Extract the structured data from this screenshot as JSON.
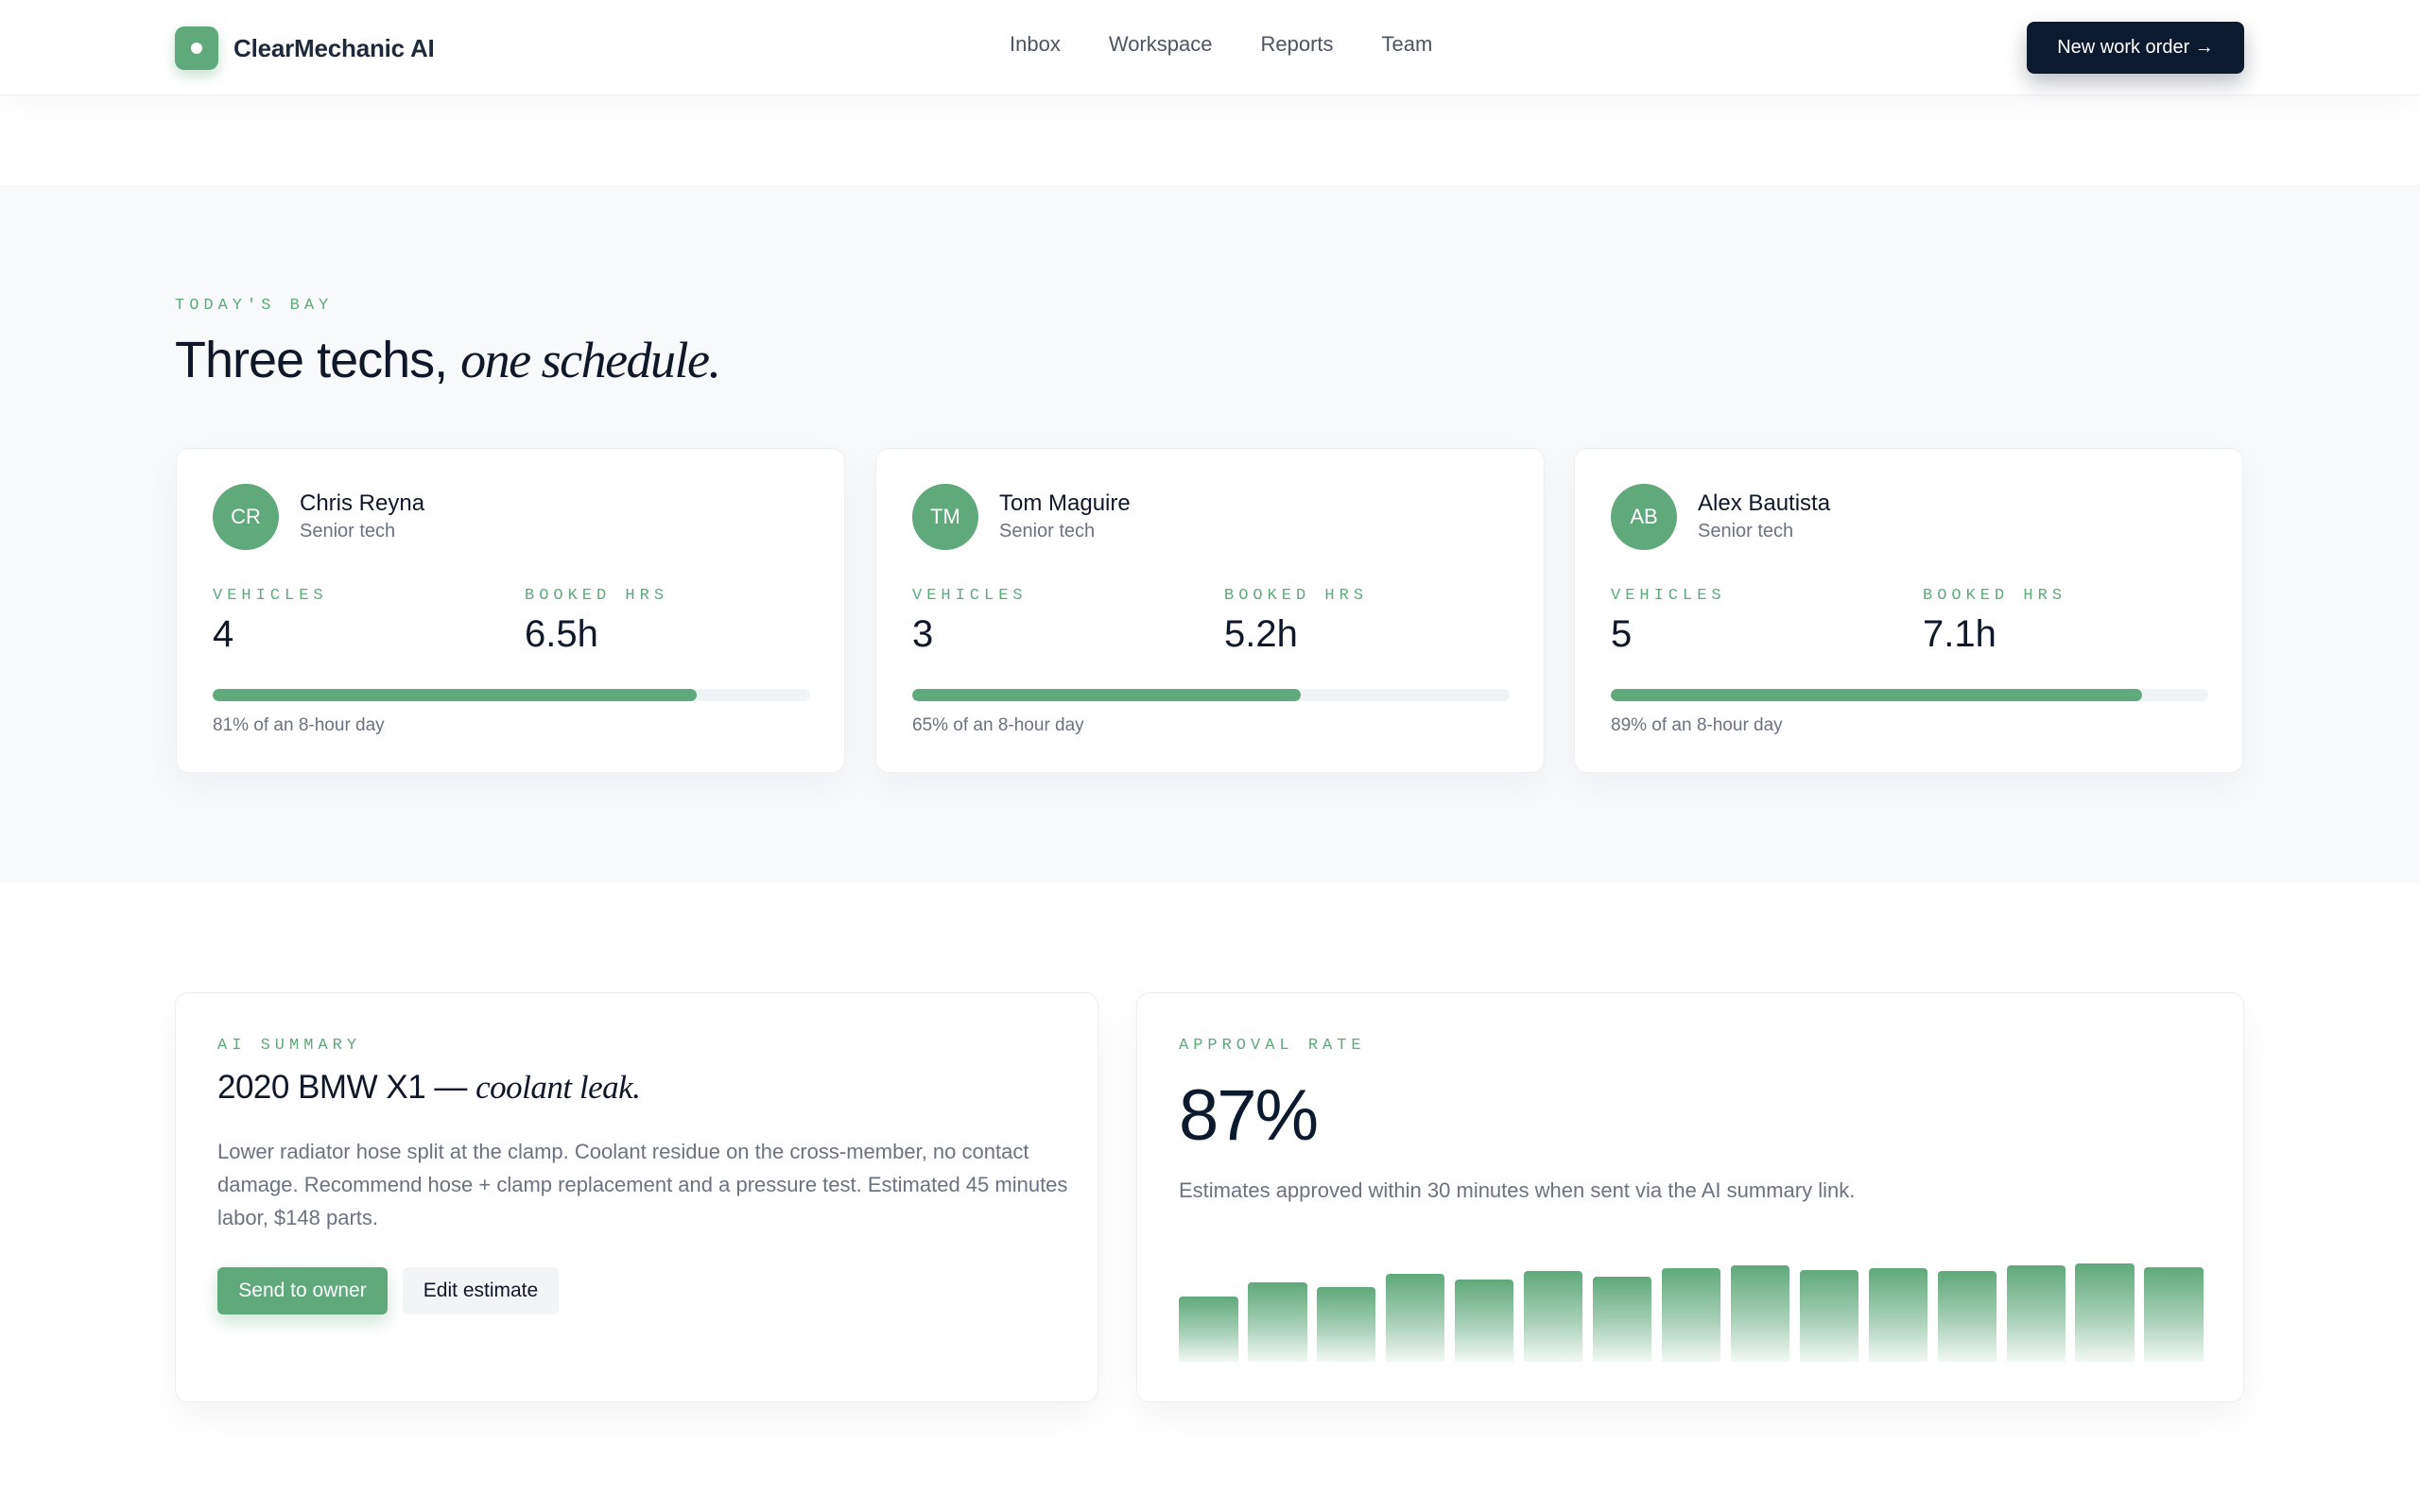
{
  "brand": {
    "name": "ClearMechanic AI"
  },
  "nav": {
    "items": [
      "Inbox",
      "Workspace",
      "Reports",
      "Team"
    ]
  },
  "cta": {
    "label": "New work order →"
  },
  "bay": {
    "eyebrow": "TODAY'S BAY",
    "title_plain": "Three techs, ",
    "title_italic": "one schedule.",
    "techs": [
      {
        "initials": "CR",
        "name": "Chris Reyna",
        "role": "Senior tech",
        "vehicles_label": "VEHICLES",
        "vehicles": "4",
        "hours_label": "BOOKED HRS",
        "hours": "6.5h",
        "utilization": 0.81,
        "caption": "81% of an 8-hour day"
      },
      {
        "initials": "TM",
        "name": "Tom Maguire",
        "role": "Senior tech",
        "vehicles_label": "VEHICLES",
        "vehicles": "3",
        "hours_label": "BOOKED HRS",
        "hours": "5.2h",
        "utilization": 0.65,
        "caption": "65% of an 8-hour day"
      },
      {
        "initials": "AB",
        "name": "Alex Bautista",
        "role": "Senior tech",
        "vehicles_label": "VEHICLES",
        "vehicles": "5",
        "hours_label": "BOOKED HRS",
        "hours": "7.1h",
        "utilization": 0.89,
        "caption": "89% of an 8-hour day"
      }
    ]
  },
  "summary": {
    "eyebrow": "AI SUMMARY",
    "title_plain": "2020 BMW X1 — ",
    "title_italic": "coolant leak.",
    "body": "Lower radiator hose split at the clamp. Coolant residue on the cross-member, no contact damage. Recommend hose + clamp replacement and a pressure test. Estimated 45 minutes labor, $148 parts.",
    "primary_label": "Send to owner",
    "secondary_label": "Edit estimate"
  },
  "approval": {
    "eyebrow": "APPROVAL RATE",
    "value": "87%",
    "note": "Estimates approved within 30 minutes when sent via the AI summary link."
  },
  "colors": {
    "accent": "#5fa97a",
    "dark": "#0b1a2f",
    "muted": "#6b7280"
  },
  "chart_data": {
    "type": "bar",
    "values": [
      66,
      81,
      76,
      89,
      84,
      92,
      87,
      95,
      98,
      93,
      95,
      92,
      98,
      100,
      96
    ],
    "ylim": [
      0,
      100
    ]
  }
}
